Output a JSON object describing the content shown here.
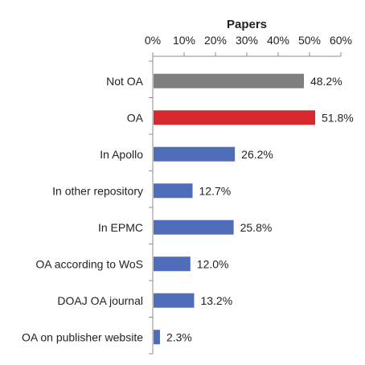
{
  "chart_data": {
    "type": "bar",
    "orientation": "horizontal",
    "title": "Papers",
    "axis_position": "top",
    "xlim": [
      0,
      60
    ],
    "ticks": [
      "0%",
      "10%",
      "20%",
      "30%",
      "40%",
      "50%",
      "60%"
    ],
    "grid": false,
    "legend": "none",
    "categories": [
      "Not OA",
      "OA",
      "In Apollo",
      "In other repository",
      "In EPMC",
      "OA according to WoS",
      "DOAJ OA journal",
      "OA on publisher website"
    ],
    "values": [
      48.2,
      51.8,
      26.2,
      12.7,
      25.8,
      12.0,
      13.2,
      2.3
    ],
    "data_labels": [
      "48.2%",
      "51.8%",
      "26.2%",
      "12.7%",
      "25.8%",
      "12.0%",
      "13.2%",
      "2.3%"
    ],
    "colors": [
      "#7f7f7f",
      "#d7282f",
      "#4f6db8",
      "#4f6db8",
      "#4f6db8",
      "#4f6db8",
      "#4f6db8",
      "#4f6db8"
    ]
  }
}
